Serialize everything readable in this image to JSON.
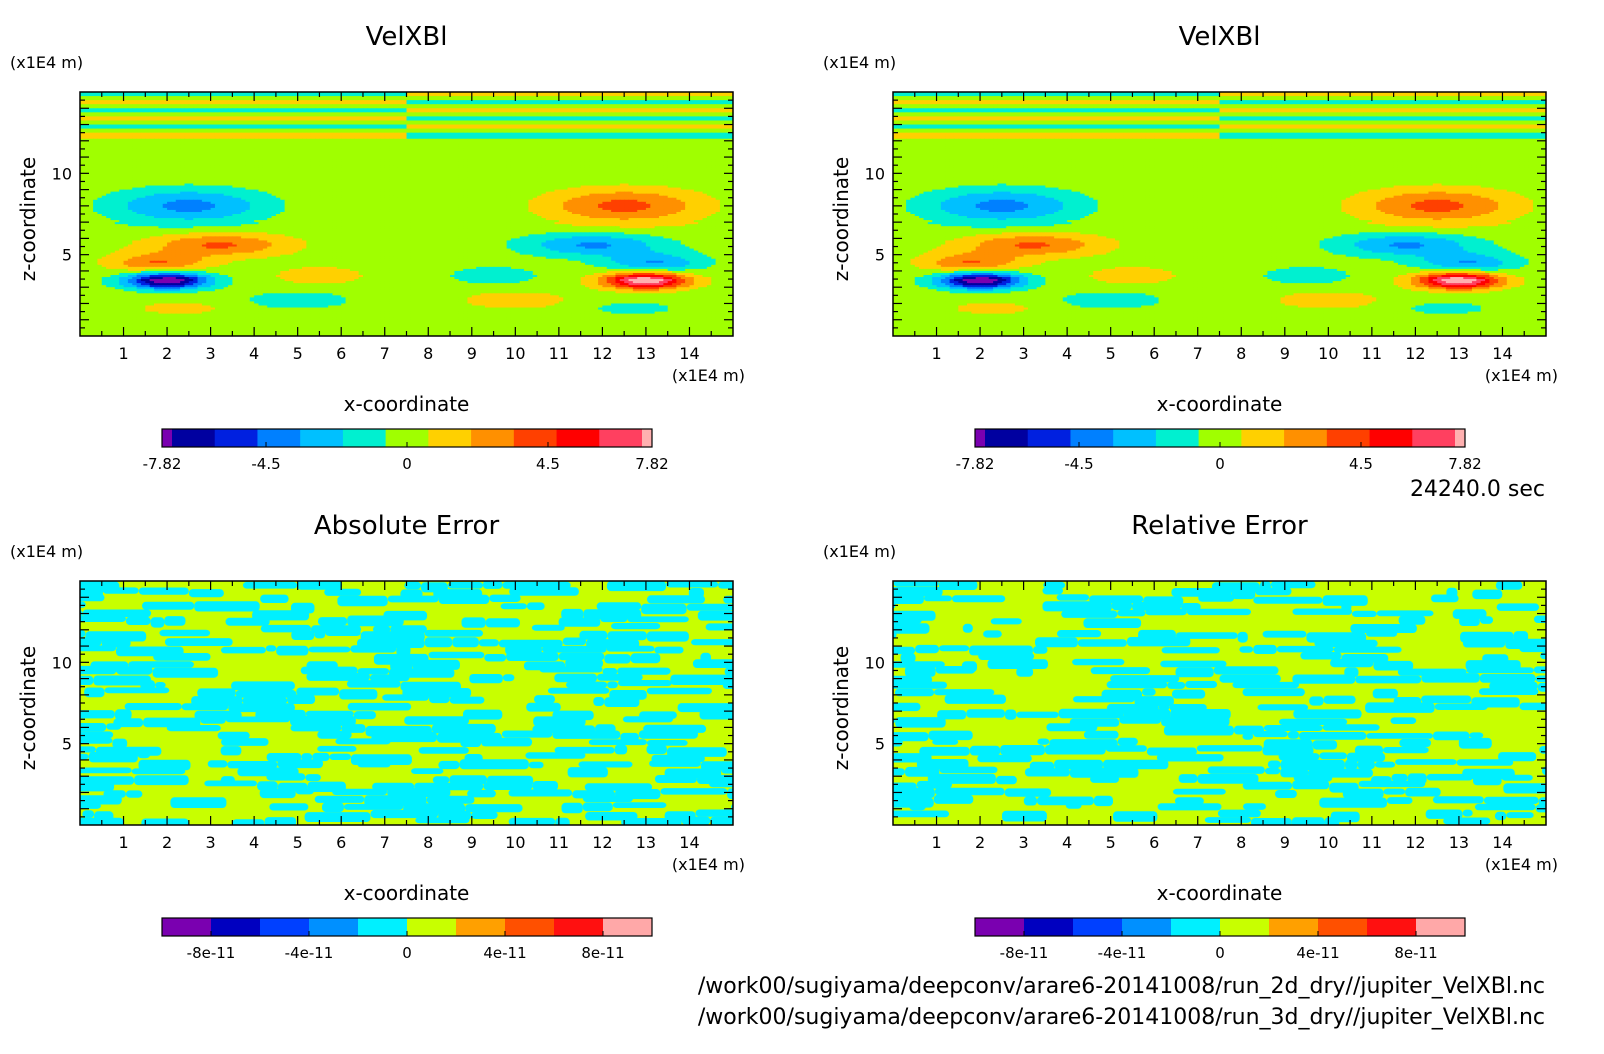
{
  "time_label": "24240.0 sec",
  "file_paths": [
    "/work00/sugiyama/deepconv/arare6-20141008/run_2d_dry//jupiter_VelXBl.nc",
    "/work00/sugiyama/deepconv/arare6-20141008/run_3d_dry//jupiter_VelXBl.nc"
  ],
  "chart_data": [
    {
      "type": "heatmap",
      "title": "VelXBl",
      "xlabel": "x-coordinate",
      "ylabel": "z-coordinate",
      "x_unit": "(x1E4 m)",
      "y_unit": "(x1E4 m)",
      "xlim": [
        0,
        15
      ],
      "ylim": [
        0,
        15
      ],
      "xticks": [
        1,
        2,
        3,
        4,
        5,
        6,
        7,
        8,
        9,
        10,
        11,
        12,
        13,
        14
      ],
      "yticks": [
        5,
        10
      ],
      "colorbar": {
        "tick_labels": [
          "-7.82",
          "-4.5",
          "0",
          "4.5",
          "7.82"
        ],
        "tick_values": [
          -7.82,
          -4.5,
          0,
          4.5,
          7.82
        ],
        "range": [
          -7.82,
          7.82
        ],
        "colors": [
          "#7a00b0",
          "#0000a0",
          "#0020e0",
          "#0080ff",
          "#00c0ff",
          "#00f0d0",
          "#a0ff00",
          "#ffd000",
          "#ff9000",
          "#ff4000",
          "#ff0000",
          "#ff4060",
          "#ffb0b0"
        ]
      },
      "pattern": "velocity"
    },
    {
      "type": "heatmap",
      "title": "VelXBl",
      "xlabel": "x-coordinate",
      "ylabel": "z-coordinate",
      "x_unit": "(x1E4 m)",
      "y_unit": "(x1E4 m)",
      "xlim": [
        0,
        15
      ],
      "ylim": [
        0,
        15
      ],
      "xticks": [
        1,
        2,
        3,
        4,
        5,
        6,
        7,
        8,
        9,
        10,
        11,
        12,
        13,
        14
      ],
      "yticks": [
        5,
        10
      ],
      "colorbar": {
        "tick_labels": [
          "-7.82",
          "-4.5",
          "0",
          "4.5",
          "7.82"
        ],
        "tick_values": [
          -7.82,
          -4.5,
          0,
          4.5,
          7.82
        ],
        "range": [
          -7.82,
          7.82
        ],
        "colors": [
          "#7a00b0",
          "#0000a0",
          "#0020e0",
          "#0080ff",
          "#00c0ff",
          "#00f0d0",
          "#a0ff00",
          "#ffd000",
          "#ff9000",
          "#ff4000",
          "#ff0000",
          "#ff4060",
          "#ffb0b0"
        ]
      },
      "pattern": "velocity"
    },
    {
      "type": "heatmap",
      "title": "Absolute Error",
      "xlabel": "x-coordinate",
      "ylabel": "z-coordinate",
      "x_unit": "(x1E4 m)",
      "y_unit": "(x1E4 m)",
      "xlim": [
        0,
        15
      ],
      "ylim": [
        0,
        15
      ],
      "xticks": [
        1,
        2,
        3,
        4,
        5,
        6,
        7,
        8,
        9,
        10,
        11,
        12,
        13,
        14
      ],
      "yticks": [
        5,
        10
      ],
      "colorbar": {
        "tick_labels": [
          "-8e-11",
          "-4e-11",
          "0",
          "4e-11",
          "8e-11"
        ],
        "tick_values": [
          -8e-11,
          -4e-11,
          0,
          4e-11,
          8e-11
        ],
        "range": [
          -1e-10,
          1e-10
        ],
        "colors": [
          "#7a00b0",
          "#0000c0",
          "#0040ff",
          "#0090ff",
          "#00f0ff",
          "#c8ff00",
          "#ffa000",
          "#ff5000",
          "#ff1010",
          "#ffa8a8"
        ]
      },
      "pattern": "noise"
    },
    {
      "type": "heatmap",
      "title": "Relative Error",
      "xlabel": "x-coordinate",
      "ylabel": "z-coordinate",
      "x_unit": "(x1E4 m)",
      "y_unit": "(x1E4 m)",
      "xlim": [
        0,
        15
      ],
      "ylim": [
        0,
        15
      ],
      "xticks": [
        1,
        2,
        3,
        4,
        5,
        6,
        7,
        8,
        9,
        10,
        11,
        12,
        13,
        14
      ],
      "yticks": [
        5,
        10
      ],
      "colorbar": {
        "tick_labels": [
          "-8e-11",
          "-4e-11",
          "0",
          "4e-11",
          "8e-11"
        ],
        "tick_values": [
          -8e-11,
          -4e-11,
          0,
          4e-11,
          8e-11
        ],
        "range": [
          -1e-10,
          1e-10
        ],
        "colors": [
          "#7a00b0",
          "#0000c0",
          "#0040ff",
          "#0090ff",
          "#00f0ff",
          "#c8ff00",
          "#ffa000",
          "#ff5000",
          "#ff1010",
          "#ffa8a8"
        ]
      },
      "pattern": "noise"
    }
  ]
}
